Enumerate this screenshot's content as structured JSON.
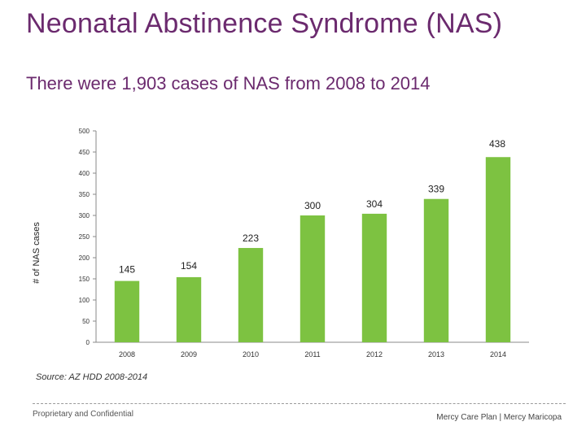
{
  "header": {
    "title": "Neonatal Abstinence Syndrome (NAS)",
    "subtitle": "There were 1,903 cases of NAS from 2008 to 2014"
  },
  "chart_data": {
    "type": "bar",
    "categories": [
      "2008",
      "2009",
      "2010",
      "2011",
      "2012",
      "2013",
      "2014"
    ],
    "values": [
      145,
      154,
      223,
      300,
      304,
      339,
      438
    ],
    "data_labels": [
      "145",
      "154",
      "223",
      "300",
      "304",
      "339",
      "438"
    ],
    "ylabel": "# of NAS cases",
    "xlabel": "",
    "ylim": [
      0,
      500
    ],
    "yticks": [
      "0",
      "50",
      "100",
      "150",
      "200",
      "250",
      "300",
      "350",
      "400",
      "450",
      "500"
    ],
    "bar_color": "#7dc241",
    "grid": false,
    "legend": "none"
  },
  "source": "Source: AZ HDD 2008-2014",
  "footer": {
    "left": "Proprietary and Confidential",
    "right": "Mercy Care Plan | Mercy Maricopa"
  },
  "colors": {
    "title": "#6b2a6e",
    "bars": "#7dc241"
  }
}
